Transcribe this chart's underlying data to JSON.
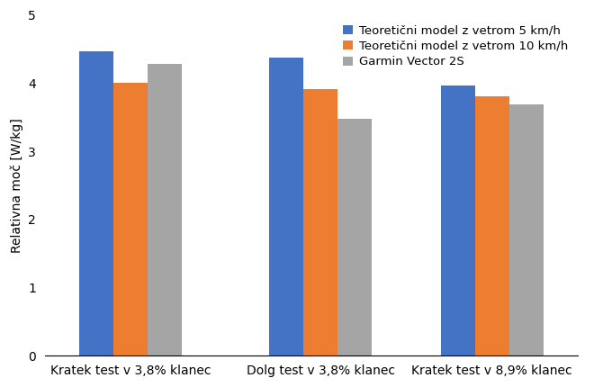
{
  "categories": [
    "Kratek test v 3,8% klanec",
    "Dolg test v 3,8% klanec",
    "Kratek test v 8,9% klanec"
  ],
  "series": [
    {
      "label": "Teoretični model z vetrom 5 km/h",
      "color": "#4472C4",
      "values": [
        4.46,
        4.38,
        3.97
      ]
    },
    {
      "label": "Teoretični model z vetrom 10 km/h",
      "color": "#ED7D31",
      "values": [
        4.01,
        3.91,
        3.8
      ]
    },
    {
      "label": "Garmin Vector 2S",
      "color": "#A5A5A5",
      "values": [
        4.28,
        3.47,
        3.69
      ]
    }
  ],
  "ylabel": "Relativna moč [W/kg]",
  "ylim": [
    0,
    5
  ],
  "yticks": [
    0,
    1,
    2,
    3,
    4,
    5
  ],
  "bar_width": 0.18,
  "legend_loc": "upper right",
  "background_color": "#ffffff",
  "font_size": 10,
  "tick_font_size": 10,
  "legend_fontsize": 9.5
}
